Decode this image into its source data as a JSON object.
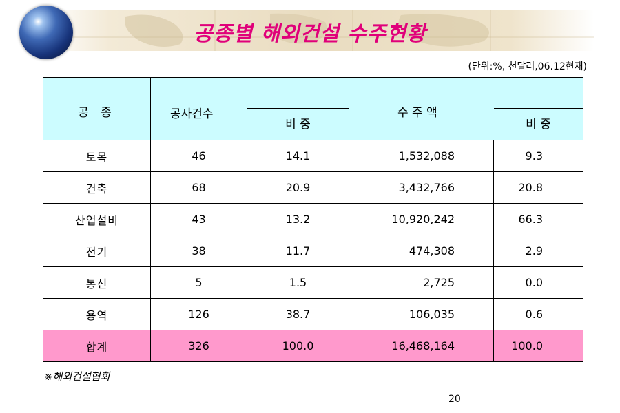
{
  "title": "공종별 해외건설 수주현황",
  "unit": "(단위:%, 천달러,06.12현재)",
  "table": {
    "headers": {
      "category": "공  종",
      "count": "공사건수",
      "count_share": "비 중",
      "amount": "수 주 액",
      "amount_share": "비 중"
    },
    "rows": [
      {
        "category": "토목",
        "count": "46",
        "count_share": "14.1",
        "amount": "1,532,088",
        "amount_share": "9.3"
      },
      {
        "category": "건축",
        "count": "68",
        "count_share": "20.9",
        "amount": "3,432,766",
        "amount_share": "20.8"
      },
      {
        "category": "산업설비",
        "count": "43",
        "count_share": "13.2",
        "amount": "10,920,242",
        "amount_share": "66.3"
      },
      {
        "category": "전기",
        "count": "38",
        "count_share": "11.7",
        "amount": "474,308",
        "amount_share": "2.9"
      },
      {
        "category": "통신",
        "count": "5",
        "count_share": "1.5",
        "amount": "2,725",
        "amount_share": "0.0"
      },
      {
        "category": "용역",
        "count": "126",
        "count_share": "38.7",
        "amount": "106,035",
        "amount_share": "0.6"
      }
    ],
    "total": {
      "category": "합계",
      "count": "326",
      "count_share": "100.0",
      "amount": "16,468,164",
      "amount_share": "100.0"
    }
  },
  "source": "※해외건설협회",
  "page_number": "20",
  "icons": {
    "globe": "globe-icon"
  },
  "colors": {
    "title": "#e0007a",
    "header_bg": "#ccfcff",
    "total_bg": "#ff99cc"
  }
}
